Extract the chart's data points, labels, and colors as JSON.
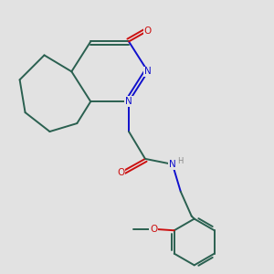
{
  "background_color": "#e2e2e2",
  "bond_color": "#2a6050",
  "nitrogen_color": "#1010cc",
  "oxygen_color": "#cc1010",
  "line_width": 1.4,
  "figsize": [
    3.0,
    3.0
  ],
  "dpi": 100,
  "xlim": [
    0,
    10
  ],
  "ylim": [
    0,
    10
  ]
}
